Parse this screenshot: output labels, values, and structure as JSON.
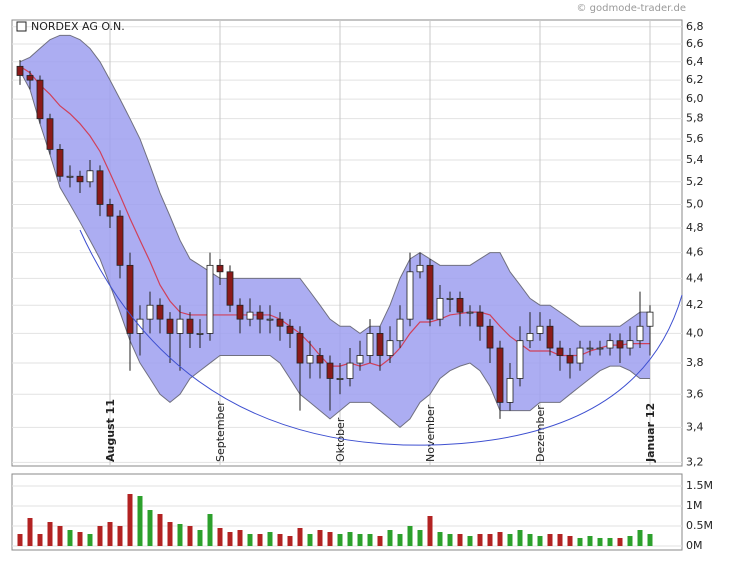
{
  "watermark": "© godmode-trader.de",
  "chart_data": [
    {
      "type": "candlestick",
      "title": "NORDEX AG O.N.",
      "categories": [
        null,
        null,
        null,
        null,
        null,
        null,
        null,
        null,
        null,
        "August 11",
        null,
        null,
        null,
        null,
        null,
        null,
        null,
        null,
        null,
        null,
        "September",
        null,
        null,
        null,
        null,
        null,
        null,
        null,
        null,
        null,
        null,
        null,
        "Oktober",
        null,
        null,
        null,
        null,
        null,
        null,
        null,
        null,
        "November",
        null,
        null,
        null,
        null,
        null,
        null,
        null,
        null,
        null,
        null,
        "Dezember",
        null,
        null,
        null,
        null,
        null,
        null,
        null,
        null,
        null,
        null,
        "Januar 12"
      ],
      "open": [
        6.35,
        6.25,
        6.2,
        5.8,
        5.5,
        5.25,
        5.25,
        5.2,
        5.3,
        5.0,
        4.9,
        4.5,
        4.0,
        4.1,
        4.2,
        4.1,
        4.0,
        4.1,
        4.0,
        4.0,
        4.5,
        4.45,
        4.2,
        4.1,
        4.15,
        4.1,
        4.1,
        4.05,
        4.0,
        3.8,
        3.85,
        3.8,
        3.7,
        3.7,
        3.8,
        3.85,
        4.0,
        3.85,
        3.95,
        4.1,
        4.45,
        4.5,
        4.1,
        4.25,
        4.25,
        4.15,
        4.15,
        4.05,
        3.9,
        3.55,
        3.7,
        3.95,
        4.0,
        4.05,
        3.9,
        3.85,
        3.8,
        3.9,
        3.9,
        3.9,
        3.95,
        3.9,
        3.95,
        4.05
      ],
      "high": [
        6.42,
        6.3,
        6.25,
        5.85,
        5.55,
        5.35,
        5.3,
        5.4,
        5.35,
        5.05,
        4.95,
        4.6,
        4.2,
        4.3,
        4.25,
        4.15,
        4.2,
        4.15,
        4.1,
        4.6,
        4.55,
        4.5,
        4.25,
        4.25,
        4.2,
        4.2,
        4.15,
        4.1,
        4.05,
        3.95,
        3.9,
        3.85,
        3.8,
        3.9,
        3.95,
        4.1,
        4.05,
        4.05,
        4.2,
        4.6,
        4.6,
        4.55,
        4.35,
        4.3,
        4.3,
        4.2,
        4.2,
        4.1,
        3.95,
        3.8,
        4.05,
        4.15,
        4.15,
        4.1,
        3.95,
        3.9,
        3.95,
        3.95,
        3.95,
        4.0,
        4.0,
        4.05,
        4.3,
        4.2
      ],
      "low": [
        6.15,
        6.1,
        5.75,
        5.45,
        5.2,
        5.15,
        5.1,
        5.15,
        4.9,
        4.8,
        4.4,
        3.75,
        3.85,
        4.0,
        4.0,
        3.8,
        3.75,
        3.9,
        3.9,
        3.95,
        4.35,
        4.15,
        4.0,
        4.05,
        4.0,
        4.0,
        3.95,
        3.9,
        3.5,
        3.7,
        3.7,
        3.5,
        3.6,
        3.65,
        3.75,
        3.8,
        3.75,
        3.8,
        3.9,
        4.05,
        4.4,
        4.05,
        4.05,
        4.15,
        4.05,
        4.05,
        3.95,
        3.8,
        3.45,
        3.5,
        3.65,
        3.9,
        3.95,
        3.85,
        3.75,
        3.7,
        3.75,
        3.85,
        3.85,
        3.85,
        3.8,
        3.85,
        3.9,
        3.85
      ],
      "close": [
        6.25,
        6.2,
        5.8,
        5.5,
        5.25,
        5.25,
        5.2,
        5.3,
        5.0,
        4.9,
        4.5,
        4.0,
        4.1,
        4.2,
        4.1,
        4.0,
        4.1,
        4.0,
        4.0,
        4.5,
        4.45,
        4.2,
        4.1,
        4.15,
        4.1,
        4.1,
        4.05,
        4.0,
        3.8,
        3.85,
        3.8,
        3.7,
        3.7,
        3.8,
        3.85,
        4.0,
        3.85,
        3.95,
        4.1,
        4.45,
        4.5,
        4.1,
        4.25,
        4.25,
        4.15,
        4.15,
        4.05,
        3.9,
        3.55,
        3.7,
        3.95,
        4.0,
        4.05,
        3.9,
        3.85,
        3.8,
        3.9,
        3.9,
        3.9,
        3.95,
        3.9,
        3.95,
        4.05,
        4.15
      ],
      "upper": [
        6.4,
        6.45,
        6.55,
        6.65,
        6.7,
        6.7,
        6.65,
        6.55,
        6.4,
        6.2,
        6.0,
        5.8,
        5.6,
        5.35,
        5.1,
        4.9,
        4.7,
        4.55,
        4.5,
        4.45,
        4.4,
        4.4,
        4.4,
        4.4,
        4.4,
        4.4,
        4.4,
        4.4,
        4.4,
        4.3,
        4.2,
        4.1,
        4.05,
        4.05,
        4.0,
        4.05,
        4.05,
        4.2,
        4.4,
        4.55,
        4.6,
        4.55,
        4.5,
        4.5,
        4.5,
        4.5,
        4.55,
        4.6,
        4.6,
        4.45,
        4.35,
        4.25,
        4.2,
        4.2,
        4.15,
        4.1,
        4.05,
        4.05,
        4.05,
        4.05,
        4.05,
        4.1,
        4.15,
        4.15
      ],
      "middle": [
        6.35,
        6.28,
        6.15,
        6.05,
        5.93,
        5.85,
        5.75,
        5.63,
        5.48,
        5.28,
        5.08,
        4.88,
        4.7,
        4.53,
        4.35,
        4.23,
        4.15,
        4.13,
        4.13,
        4.13,
        4.13,
        4.13,
        4.13,
        4.13,
        4.13,
        4.13,
        4.1,
        4.05,
        4.0,
        3.93,
        3.85,
        3.78,
        3.78,
        3.8,
        3.78,
        3.8,
        3.78,
        3.83,
        3.9,
        4.0,
        4.08,
        4.08,
        4.1,
        4.13,
        4.14,
        4.15,
        4.15,
        4.13,
        4.05,
        3.98,
        3.93,
        3.88,
        3.88,
        3.88,
        3.85,
        3.85,
        3.85,
        3.88,
        3.9,
        3.92,
        3.92,
        3.93,
        3.93,
        3.93
      ],
      "lower": [
        6.3,
        6.1,
        5.75,
        5.45,
        5.15,
        5.0,
        4.85,
        4.7,
        4.55,
        4.35,
        4.15,
        3.95,
        3.8,
        3.7,
        3.6,
        3.55,
        3.6,
        3.7,
        3.75,
        3.8,
        3.85,
        3.85,
        3.85,
        3.85,
        3.85,
        3.85,
        3.8,
        3.7,
        3.6,
        3.55,
        3.5,
        3.45,
        3.5,
        3.55,
        3.55,
        3.55,
        3.5,
        3.45,
        3.4,
        3.45,
        3.55,
        3.6,
        3.7,
        3.75,
        3.78,
        3.8,
        3.75,
        3.65,
        3.5,
        3.5,
        3.5,
        3.5,
        3.55,
        3.55,
        3.55,
        3.6,
        3.65,
        3.7,
        3.75,
        3.78,
        3.78,
        3.75,
        3.7,
        3.7
      ],
      "up_color": "#ffffff",
      "down_color": "#8b1a1a",
      "band_color": "#9d9ff0",
      "middle_color": "#d0405a",
      "log": true,
      "grid": true,
      "ylim": [
        3.18,
        6.88
      ],
      "yticks": [
        {
          "value": 3.2,
          "label": "3,2"
        },
        {
          "value": 3.4,
          "label": "3,4"
        },
        {
          "value": 3.6,
          "label": "3,6"
        },
        {
          "value": 3.8,
          "label": "3,8"
        },
        {
          "value": 4.0,
          "label": "4,0"
        },
        {
          "value": 4.2,
          "label": "4,2"
        },
        {
          "value": 4.4,
          "label": "4,4"
        },
        {
          "value": 4.6,
          "label": "4,6"
        },
        {
          "value": 4.8,
          "label": "4,8"
        },
        {
          "value": 5.0,
          "label": "5,0"
        },
        {
          "value": 5.2,
          "label": "5,2"
        },
        {
          "value": 5.4,
          "label": "5,4"
        },
        {
          "value": 5.6,
          "label": "5,6"
        },
        {
          "value": 5.8,
          "label": "5,8"
        },
        {
          "value": 6.0,
          "label": "6,0"
        },
        {
          "value": 6.2,
          "label": "6,2"
        },
        {
          "value": 6.4,
          "label": "6,4"
        },
        {
          "value": 6.6,
          "label": "6,6"
        },
        {
          "value": 6.8,
          "label": "6,8"
        }
      ]
    },
    {
      "type": "bar",
      "values": [
        300000,
        700000,
        300000,
        600000,
        500000,
        400000,
        350000,
        300000,
        500000,
        600000,
        500000,
        1300000,
        1250000,
        900000,
        800000,
        600000,
        550000,
        500000,
        400000,
        800000,
        450000,
        350000,
        400000,
        300000,
        300000,
        350000,
        300000,
        250000,
        450000,
        300000,
        400000,
        350000,
        300000,
        350000,
        300000,
        300000,
        250000,
        400000,
        300000,
        500000,
        400000,
        750000,
        350000,
        300000,
        300000,
        250000,
        300000,
        300000,
        350000,
        300000,
        400000,
        300000,
        250000,
        300000,
        300000,
        250000,
        200000,
        250000,
        200000,
        200000,
        200000,
        250000,
        400000,
        300000
      ],
      "up_color": "#2ca02c",
      "down_color": "#b22222",
      "ylim": [
        0,
        1800000
      ],
      "yticks": [
        {
          "value": 0,
          "label": "0M"
        },
        {
          "value": 500000,
          "label": "0.5M"
        },
        {
          "value": 1000000,
          "label": "1M"
        },
        {
          "value": 1500000,
          "label": "1.5M"
        }
      ],
      "grid": true
    }
  ]
}
